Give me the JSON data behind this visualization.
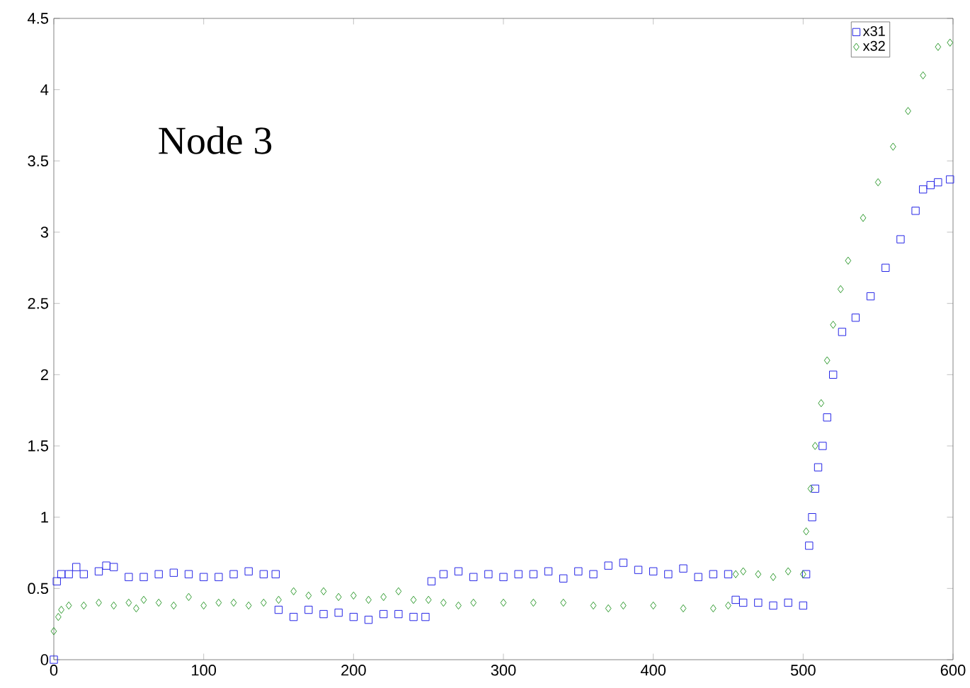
{
  "chart_data": {
    "type": "scatter",
    "annotations": [
      "Node 3"
    ],
    "xlim": [
      0,
      600
    ],
    "ylim": [
      0,
      4.5
    ],
    "xticks": [
      0,
      100,
      200,
      300,
      400,
      500,
      600
    ],
    "yticks": [
      0,
      0.5,
      1,
      1.5,
      2,
      2.5,
      3,
      3.5,
      4,
      4.5
    ],
    "grid": false,
    "legend": "top right",
    "series": [
      {
        "name": "x31",
        "color": "#2626e6",
        "marker": "square",
        "x": [
          0,
          2,
          5,
          10,
          15,
          20,
          30,
          35,
          40,
          50,
          60,
          70,
          80,
          90,
          100,
          110,
          120,
          130,
          140,
          148,
          150,
          160,
          170,
          180,
          190,
          200,
          210,
          220,
          230,
          240,
          248,
          252,
          260,
          270,
          280,
          290,
          300,
          310,
          320,
          330,
          340,
          350,
          360,
          370,
          380,
          390,
          400,
          410,
          420,
          430,
          440,
          450,
          455,
          460,
          470,
          480,
          490,
          500,
          502,
          504,
          506,
          508,
          510,
          513,
          516,
          520,
          526,
          535,
          545,
          555,
          565,
          575,
          580,
          585,
          590,
          598
        ],
        "values": [
          0,
          0.55,
          0.6,
          0.6,
          0.65,
          0.6,
          0.62,
          0.66,
          0.65,
          0.58,
          0.58,
          0.6,
          0.61,
          0.6,
          0.58,
          0.58,
          0.6,
          0.62,
          0.6,
          0.6,
          0.35,
          0.3,
          0.35,
          0.32,
          0.33,
          0.3,
          0.28,
          0.32,
          0.32,
          0.3,
          0.3,
          0.55,
          0.6,
          0.62,
          0.58,
          0.6,
          0.58,
          0.6,
          0.6,
          0.62,
          0.57,
          0.62,
          0.6,
          0.66,
          0.68,
          0.63,
          0.62,
          0.6,
          0.64,
          0.58,
          0.6,
          0.6,
          0.42,
          0.4,
          0.4,
          0.38,
          0.4,
          0.38,
          0.6,
          0.8,
          1.0,
          1.2,
          1.35,
          1.5,
          1.7,
          2.0,
          2.3,
          2.4,
          2.55,
          2.75,
          2.95,
          3.15,
          3.3,
          3.33,
          3.35,
          3.37
        ]
      },
      {
        "name": "x32",
        "color": "#2e9a2e",
        "marker": "diamond",
        "x": [
          0,
          3,
          5,
          10,
          20,
          30,
          40,
          50,
          55,
          60,
          70,
          80,
          90,
          100,
          110,
          120,
          130,
          140,
          150,
          160,
          170,
          180,
          190,
          200,
          210,
          220,
          230,
          240,
          250,
          260,
          270,
          280,
          300,
          320,
          340,
          360,
          370,
          380,
          400,
          420,
          440,
          450,
          455,
          460,
          470,
          480,
          490,
          500,
          502,
          505,
          508,
          512,
          516,
          520,
          525,
          530,
          540,
          550,
          560,
          570,
          580,
          590,
          598
        ],
        "values": [
          0.2,
          0.3,
          0.35,
          0.38,
          0.38,
          0.4,
          0.38,
          0.4,
          0.36,
          0.42,
          0.4,
          0.38,
          0.44,
          0.38,
          0.4,
          0.4,
          0.38,
          0.4,
          0.42,
          0.48,
          0.45,
          0.48,
          0.44,
          0.45,
          0.42,
          0.44,
          0.48,
          0.42,
          0.42,
          0.4,
          0.38,
          0.4,
          0.4,
          0.4,
          0.4,
          0.38,
          0.36,
          0.38,
          0.38,
          0.36,
          0.36,
          0.38,
          0.6,
          0.62,
          0.6,
          0.58,
          0.62,
          0.6,
          0.9,
          1.2,
          1.5,
          1.8,
          2.1,
          2.35,
          2.6,
          2.8,
          3.1,
          3.35,
          3.6,
          3.85,
          4.1,
          4.3,
          4.33
        ]
      }
    ]
  }
}
